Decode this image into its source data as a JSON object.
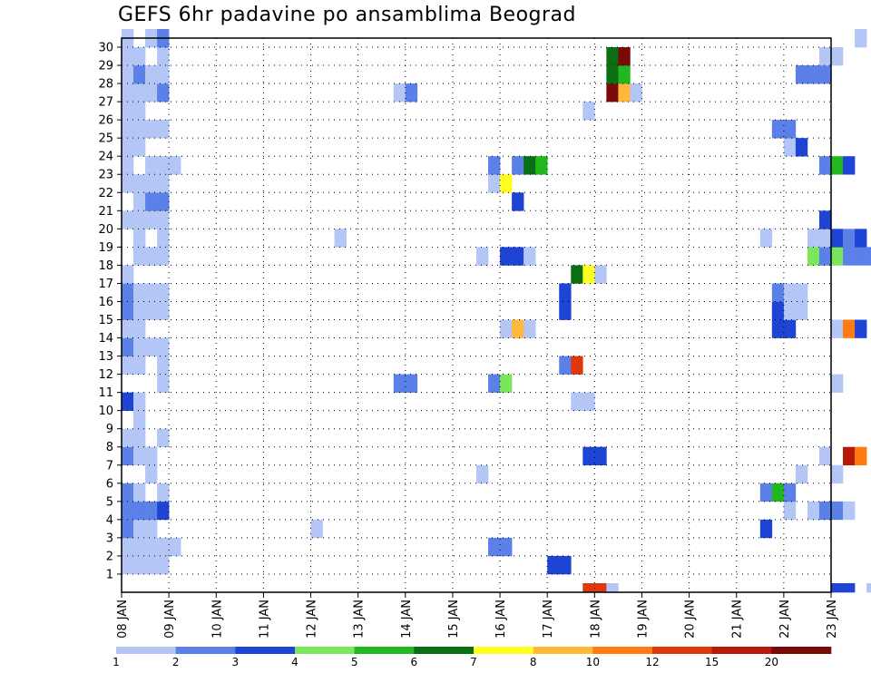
{
  "title": "GEFS 6hr padavine po ansamblima Beograd",
  "chart_data": {
    "type": "heatmap",
    "title": "GEFS 6hr padavine po ansamblima Beograd",
    "xlabel": "",
    "ylabel": "",
    "x_tick_labels": [
      "08 JAN",
      "09 JAN",
      "10 JAN",
      "11 JAN",
      "12 JAN",
      "13 JAN",
      "14 JAN",
      "15 JAN",
      "16 JAN",
      "17 JAN",
      "18 JAN",
      "19 JAN",
      "20 JAN",
      "21 JAN",
      "22 JAN",
      "23 JAN"
    ],
    "y_tick_labels": [
      "1",
      "2",
      "3",
      "4",
      "5",
      "6",
      "7",
      "8",
      "9",
      "10",
      "11",
      "12",
      "13",
      "14",
      "15",
      "16",
      "17",
      "18",
      "19",
      "20",
      "21",
      "22",
      "23",
      "24",
      "25",
      "26",
      "27",
      "28",
      "29",
      "30"
    ],
    "steps_per_day": 4,
    "ylim": [
      1,
      30
    ],
    "grid": true,
    "legend_placement": "bottom",
    "legend": {
      "labels": [
        "1",
        "2",
        "3",
        "4",
        "5",
        "6",
        "7",
        "8",
        "10",
        "12",
        "15",
        "20"
      ],
      "colors": [
        "#b3c6f5",
        "#5b80e8",
        "#1e44d6",
        "#7ae65a",
        "#20b81e",
        "#0a6e12",
        "#ffff20",
        "#ffb83a",
        "#ff7a10",
        "#e0380c",
        "#b81808",
        "#7a0a08"
      ]
    },
    "cells": [
      [
        1,
        0,
        1
      ],
      [
        1,
        1,
        1
      ],
      [
        1,
        2,
        1
      ],
      [
        1,
        3,
        1
      ],
      [
        2,
        0,
        1
      ],
      [
        2,
        1,
        1
      ],
      [
        2,
        2,
        1
      ],
      [
        2,
        3,
        1
      ],
      [
        2,
        4,
        1
      ],
      [
        2,
        31,
        2
      ],
      [
        3,
        0,
        2
      ],
      [
        3,
        1,
        1
      ],
      [
        3,
        2,
        1
      ],
      [
        3,
        16,
        1
      ],
      [
        4,
        0,
        2
      ],
      [
        4,
        1,
        2
      ],
      [
        4,
        2,
        2
      ],
      [
        4,
        3,
        3
      ],
      [
        5,
        0,
        2
      ],
      [
        5,
        1,
        1
      ],
      [
        5,
        3,
        1
      ],
      [
        6,
        2,
        1
      ],
      [
        7,
        0,
        2
      ],
      [
        7,
        1,
        1
      ],
      [
        7,
        2,
        1
      ],
      [
        8,
        0,
        1
      ],
      [
        8,
        1,
        1
      ],
      [
        8,
        3,
        1
      ],
      [
        9,
        1,
        1
      ],
      [
        10,
        0,
        3
      ],
      [
        10,
        1,
        1
      ],
      [
        11,
        3,
        1
      ],
      [
        11,
        23,
        2
      ],
      [
        11,
        24,
        2
      ],
      [
        12,
        0,
        1
      ],
      [
        12,
        1,
        1
      ],
      [
        12,
        3,
        1
      ],
      [
        13,
        0,
        2
      ],
      [
        13,
        1,
        1
      ],
      [
        13,
        2,
        1
      ],
      [
        13,
        3,
        1
      ],
      [
        14,
        0,
        1
      ],
      [
        14,
        1,
        1
      ],
      [
        15,
        0,
        2
      ],
      [
        15,
        1,
        1
      ],
      [
        15,
        2,
        1
      ],
      [
        15,
        3,
        1
      ],
      [
        16,
        0,
        2
      ],
      [
        16,
        1,
        1
      ],
      [
        16,
        2,
        1
      ],
      [
        16,
        3,
        1
      ],
      [
        17,
        0,
        1
      ],
      [
        18,
        1,
        1
      ],
      [
        18,
        2,
        1
      ],
      [
        18,
        3,
        1
      ],
      [
        19,
        1,
        1
      ],
      [
        19,
        3,
        1
      ],
      [
        19,
        18,
        1
      ],
      [
        20,
        0,
        1
      ],
      [
        20,
        1,
        1
      ],
      [
        20,
        2,
        1
      ],
      [
        20,
        3,
        1
      ],
      [
        21,
        1,
        1
      ],
      [
        21,
        2,
        2
      ],
      [
        21,
        3,
        2
      ],
      [
        22,
        0,
        1
      ],
      [
        22,
        1,
        1
      ],
      [
        22,
        2,
        1
      ],
      [
        22,
        3,
        1
      ],
      [
        23,
        0,
        1
      ],
      [
        23,
        2,
        1
      ],
      [
        23,
        3,
        1
      ],
      [
        23,
        4,
        1
      ],
      [
        24,
        0,
        1
      ],
      [
        24,
        1,
        1
      ],
      [
        25,
        0,
        1
      ],
      [
        25,
        1,
        1
      ],
      [
        25,
        2,
        1
      ],
      [
        25,
        3,
        1
      ],
      [
        26,
        0,
        1
      ],
      [
        26,
        1,
        1
      ],
      [
        27,
        0,
        1
      ],
      [
        27,
        1,
        1
      ],
      [
        27,
        2,
        1
      ],
      [
        27,
        3,
        2
      ],
      [
        27,
        23,
        1
      ],
      [
        27,
        24,
        2
      ],
      [
        28,
        0,
        1
      ],
      [
        28,
        1,
        2
      ],
      [
        28,
        2,
        1
      ],
      [
        28,
        3,
        1
      ],
      [
        29,
        0,
        1
      ],
      [
        29,
        1,
        1
      ],
      [
        29,
        3,
        1
      ],
      [
        30,
        0,
        1
      ],
      [
        30,
        2,
        1
      ],
      [
        30,
        3,
        2
      ],
      [
        1,
        36,
        3
      ],
      [
        1,
        37,
        3
      ],
      [
        2,
        32,
        2
      ],
      [
        3,
        54,
        3
      ],
      [
        4,
        56,
        1
      ],
      [
        4,
        58,
        1
      ],
      [
        4,
        59,
        2
      ],
      [
        4,
        60,
        2
      ],
      [
        4,
        61,
        1
      ],
      [
        5,
        54,
        2
      ],
      [
        5,
        55,
        5
      ],
      [
        5,
        56,
        2
      ],
      [
        6,
        30,
        1
      ],
      [
        6,
        57,
        1
      ],
      [
        6,
        60,
        1
      ],
      [
        7,
        39,
        3
      ],
      [
        7,
        40,
        3
      ],
      [
        7,
        59,
        1
      ],
      [
        7,
        61,
        11
      ],
      [
        7,
        62,
        9
      ],
      [
        7,
        65,
        9
      ],
      [
        7,
        66,
        9
      ],
      [
        9,
        68,
        2
      ],
      [
        10,
        38,
        1
      ],
      [
        10,
        39,
        1
      ],
      [
        11,
        31,
        2
      ],
      [
        11,
        32,
        4
      ],
      [
        11,
        60,
        1
      ],
      [
        12,
        37,
        2
      ],
      [
        12,
        38,
        10
      ],
      [
        12,
        65,
        1
      ],
      [
        12,
        66,
        2
      ],
      [
        12,
        67,
        11
      ],
      [
        12,
        68,
        3
      ],
      [
        12,
        69,
        1
      ],
      [
        13,
        66,
        4
      ],
      [
        13,
        67,
        2
      ],
      [
        13,
        71,
        1
      ],
      [
        13,
        72,
        4
      ],
      [
        13,
        73,
        2
      ],
      [
        14,
        32,
        1
      ],
      [
        14,
        33,
        8
      ],
      [
        14,
        34,
        1
      ],
      [
        14,
        55,
        3
      ],
      [
        14,
        56,
        3
      ],
      [
        14,
        60,
        1
      ],
      [
        14,
        61,
        9
      ],
      [
        14,
        62,
        3
      ],
      [
        15,
        37,
        3
      ],
      [
        15,
        55,
        3
      ],
      [
        15,
        56,
        1
      ],
      [
        15,
        57,
        1
      ],
      [
        16,
        37,
        3
      ],
      [
        16,
        55,
        2
      ],
      [
        16,
        56,
        1
      ],
      [
        16,
        57,
        1
      ],
      [
        17,
        38,
        6
      ],
      [
        17,
        39,
        7
      ],
      [
        17,
        40,
        1
      ],
      [
        17,
        71,
        1
      ],
      [
        17,
        72,
        1
      ],
      [
        17,
        73,
        1
      ],
      [
        17,
        74,
        3
      ],
      [
        18,
        30,
        1
      ],
      [
        18,
        32,
        3
      ],
      [
        18,
        33,
        3
      ],
      [
        18,
        34,
        1
      ],
      [
        18,
        58,
        4
      ],
      [
        18,
        59,
        2
      ],
      [
        18,
        60,
        4
      ],
      [
        18,
        61,
        2
      ],
      [
        18,
        62,
        2
      ],
      [
        18,
        63,
        2
      ],
      [
        18,
        64,
        9
      ],
      [
        19,
        54,
        1
      ],
      [
        19,
        58,
        1
      ],
      [
        19,
        59,
        1
      ],
      [
        19,
        60,
        3
      ],
      [
        19,
        61,
        2
      ],
      [
        19,
        62,
        3
      ],
      [
        19,
        66,
        1
      ],
      [
        20,
        59,
        3
      ],
      [
        21,
        33,
        3
      ],
      [
        22,
        31,
        1
      ],
      [
        22,
        32,
        7
      ],
      [
        23,
        31,
        2
      ],
      [
        23,
        33,
        2
      ],
      [
        23,
        34,
        6
      ],
      [
        23,
        35,
        5
      ],
      [
        23,
        59,
        2
      ],
      [
        23,
        60,
        5
      ],
      [
        23,
        61,
        3
      ],
      [
        24,
        56,
        1
      ],
      [
        24,
        57,
        3
      ],
      [
        24,
        67,
        1
      ],
      [
        25,
        55,
        2
      ],
      [
        25,
        56,
        2
      ],
      [
        26,
        39,
        1
      ],
      [
        26,
        71,
        1
      ],
      [
        27,
        41,
        12
      ],
      [
        27,
        42,
        8
      ],
      [
        27,
        43,
        1
      ],
      [
        28,
        41,
        6
      ],
      [
        28,
        42,
        5
      ],
      [
        28,
        57,
        2
      ],
      [
        28,
        58,
        2
      ],
      [
        28,
        59,
        2
      ],
      [
        29,
        41,
        6
      ],
      [
        29,
        42,
        12
      ],
      [
        29,
        59,
        1
      ],
      [
        29,
        60,
        1
      ],
      [
        30,
        62,
        1
      ],
      [
        30,
        67,
        3
      ],
      [
        30,
        68,
        3
      ],
      [
        0,
        39,
        10
      ],
      [
        0,
        40,
        10
      ],
      [
        0,
        41,
        1
      ],
      [
        0,
        60,
        3
      ],
      [
        0,
        61,
        3
      ],
      [
        0,
        63,
        1
      ],
      [
        0,
        64,
        5
      ],
      [
        0,
        65,
        1
      ],
      [
        2,
        72,
        2
      ],
      [
        2,
        73,
        2
      ],
      [
        2,
        74,
        2
      ],
      [
        2,
        75,
        2
      ]
    ]
  }
}
